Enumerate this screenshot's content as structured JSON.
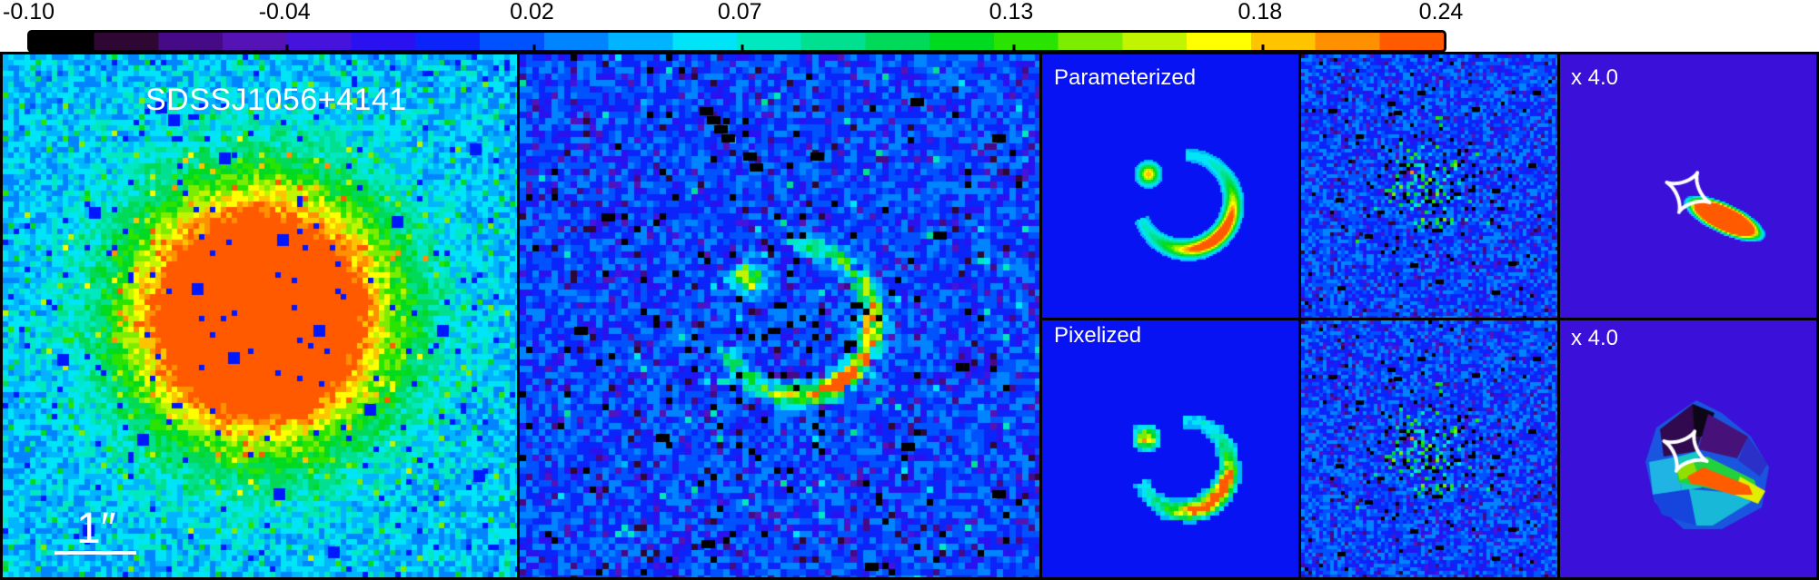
{
  "figure": {
    "object_name": "SDSSJ1056+4141"
  },
  "colorbar": {
    "min": -0.1,
    "max": 0.24,
    "tick_labels": [
      "-0.10",
      "-0.04",
      "0.02",
      "0.07",
      "0.13",
      "0.18",
      "0.24"
    ],
    "tick_values": [
      -0.1,
      -0.04,
      0.02,
      0.07,
      0.13,
      0.18,
      0.24
    ],
    "colors": [
      "#000000",
      "#2e0833",
      "#460a86",
      "#5513b6",
      "#4513dc",
      "#2a12f0",
      "#0b24fa",
      "#0052ff",
      "#0084ff",
      "#00b4ff",
      "#00e4f8",
      "#00e8c0",
      "#00e090",
      "#00da58",
      "#00da20",
      "#28e400",
      "#7cec00",
      "#c0f400",
      "#ffff00",
      "#ffc400",
      "#ff9000",
      "#ff5a00"
    ]
  },
  "panels": {
    "data": {
      "label": "SDSSJ1056+4141",
      "scale_bar_label": "1″"
    },
    "model_rows": [
      {
        "label": "Parameterized",
        "zoom_label": "x 4.0"
      },
      {
        "label": "Pixelized",
        "zoom_label": "x 4.0"
      }
    ]
  },
  "colors": {
    "model_bg": "#0713f2",
    "source_bg": "#3b10d8",
    "mask_blue": "#0018ff",
    "mask_black": "#000000",
    "caustic": "#ffffff",
    "panel_border": "#000000",
    "label_text": "#ffffff",
    "colorbar_text": "#000000"
  }
}
